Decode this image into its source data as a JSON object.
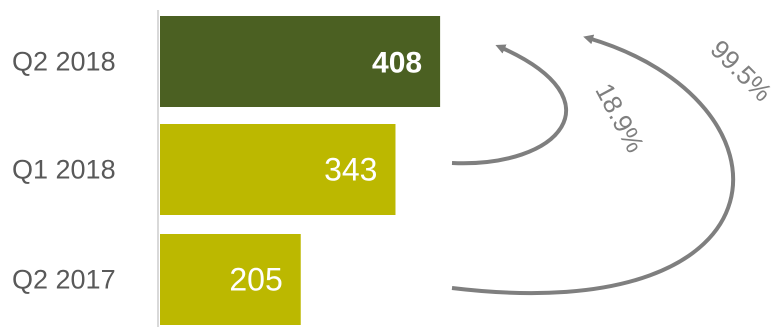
{
  "chart_data": {
    "type": "bar",
    "orientation": "horizontal",
    "categories": [
      "Q2 2018",
      "Q1 2018",
      "Q2 2017"
    ],
    "values": [
      408,
      343,
      205
    ],
    "value_labels": [
      "408",
      "343",
      "205"
    ],
    "bar_colors": [
      "#4b6022",
      "#bcb800",
      "#bcb800"
    ],
    "xlim": [
      0,
      520
    ],
    "grid": false,
    "legend": "none",
    "annotations": [
      {
        "text": "18.9%",
        "from": "Q1 2018",
        "to": "Q2 2018"
      },
      {
        "text": "99.5%",
        "from": "Q2 2017",
        "to": "Q2 2018"
      }
    ],
    "arrow_color": "#7f7f7f"
  }
}
